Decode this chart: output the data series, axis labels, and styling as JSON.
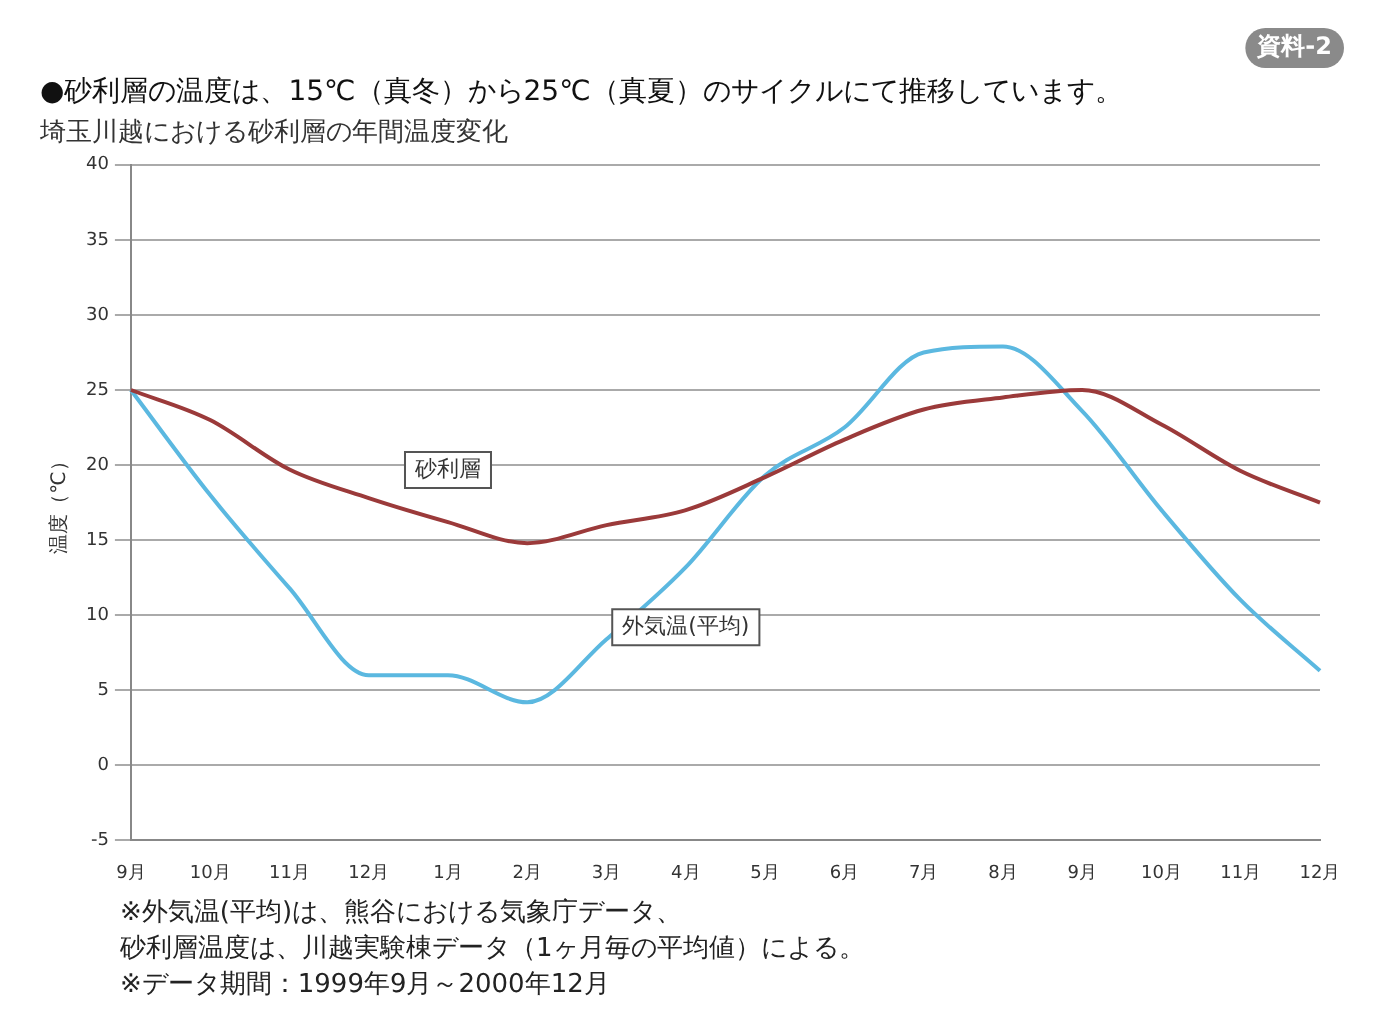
{
  "chart_data": {
    "type": "line",
    "title": "●砂利層の温度は、15℃（真冬）から25℃（真夏）のサイクルにて推移しています。",
    "subtitle": "埼玉川越における砂利層の年間温度変化",
    "ylabel": "温度（℃）",
    "categories": [
      "9月",
      "10月",
      "11月",
      "12月",
      "1月",
      "2月",
      "3月",
      "4月",
      "5月",
      "6月",
      "7月",
      "8月",
      "9月",
      "10月",
      "11月",
      "12月"
    ],
    "series": [
      {
        "name": "砂利層",
        "color": "#9b3a3a",
        "values": [
          25,
          23,
          19.7,
          17.8,
          16.2,
          14.8,
          16,
          17,
          19.2,
          21.7,
          23.7,
          24.5,
          25,
          22.7,
          19.6,
          17.5
        ]
      },
      {
        "name": "外気温(平均)",
        "color": "#5bb8e0",
        "values": [
          25,
          18,
          11.8,
          6,
          6,
          4.2,
          8.4,
          13.2,
          19.3,
          22.5,
          27.5,
          27.9,
          23.6,
          17,
          11,
          6.3
        ]
      }
    ],
    "ylim": [
      -5,
      40
    ],
    "yticks": [
      -5,
      0,
      5,
      10,
      15,
      20,
      25,
      30,
      35,
      40
    ],
    "grid": "y",
    "legend": false,
    "marker": "none",
    "line_style": "solid",
    "annotations": [
      "資料-2",
      "※外気温(平均)は、熊谷における気象庁データ、",
      "砂利層温度は、川越実験棟データ（1ヶ月毎の平均値）による。",
      "※データ期間：1999年9月～2000年12月"
    ]
  }
}
